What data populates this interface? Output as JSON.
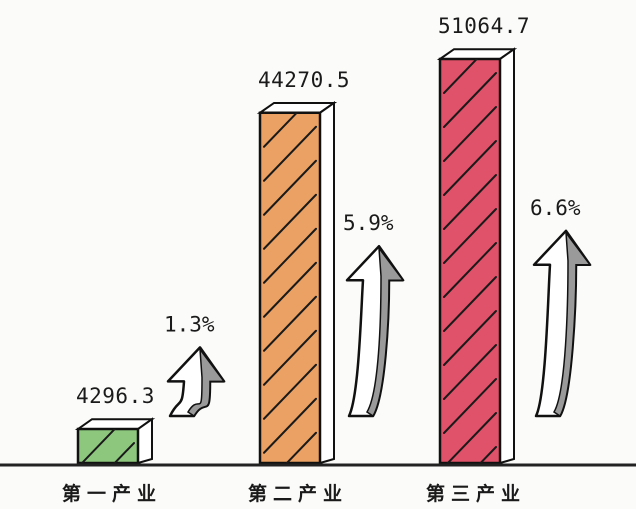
{
  "chart_data": {
    "type": "bar",
    "categories": [
      "第一产业",
      "第二产业",
      "第三产业"
    ],
    "values": [
      4296.3,
      44270.5,
      51064.7
    ],
    "value_labels": [
      "4296.3",
      "44270.5",
      "51064.7"
    ],
    "growth_labels": [
      "1.3%",
      "5.9%",
      "6.6%"
    ],
    "growth": [
      1.3,
      5.9,
      6.6
    ],
    "colors": [
      "#8dc77e",
      "#eaa163",
      "#e05269"
    ],
    "title": "",
    "xlabel": "",
    "ylabel": "",
    "ylim": [
      0,
      55000
    ],
    "grid": false,
    "legend": "none"
  }
}
